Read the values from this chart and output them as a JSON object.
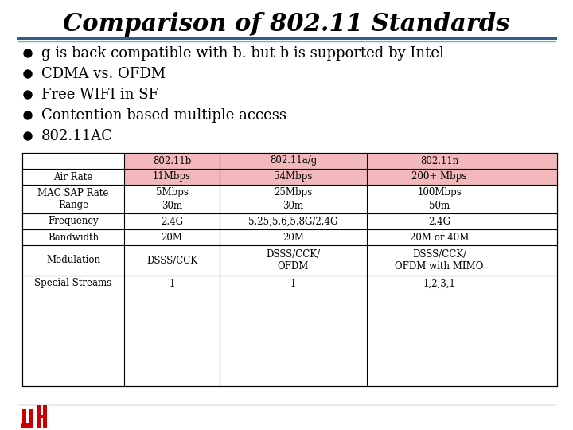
{
  "title": "Comparison of 802.11 Standards",
  "title_fontsize": 22,
  "title_style": "italic",
  "title_weight": "bold",
  "title_font": "serif",
  "bullets": [
    "g is back compatible with b. but b is supported by Intel",
    "CDMA vs. OFDM",
    "Free WIFI in SF",
    "Contention based multiple access",
    "802.11AC"
  ],
  "bullet_fontsize": 13,
  "bullet_font": "serif",
  "table_headers": [
    "",
    "802.11b",
    "802.11a/g",
    "802.11n"
  ],
  "table_rows": [
    [
      "Air Rate",
      "11Mbps",
      "54Mbps",
      "200+ Mbps"
    ],
    [
      "MAC SAP Rate\nRange",
      "5Mbps\n30m",
      "25Mbps\n30m",
      "100Mbps\n50m"
    ],
    [
      "Frequency",
      "2.4G",
      "5.25,5.6,5.8G/2.4G",
      "2.4G"
    ],
    [
      "Bandwidth",
      "20M",
      "20M",
      "20M or 40M"
    ],
    [
      "Modulation",
      "DSSS/CCK",
      "DSSS/CCK/\nOFDM",
      "DSSS/CCK/\nOFDM with MIMO"
    ],
    [
      "Special Streams",
      "1",
      "1",
      "1,2,3,1"
    ]
  ],
  "header_bg": "#f2b8bb",
  "air_rate_bg": "#f2b8bb",
  "normal_bg": "#ffffff",
  "bg_color": "#ffffff",
  "title_color": "#000000",
  "line_color_dark": "#2e5f8a",
  "line_color_light": "#7ba7c9",
  "table_fontsize": 8.5,
  "table_font": "serif",
  "logo_color_red": "#cc0000",
  "footer_line_color": "#999999"
}
